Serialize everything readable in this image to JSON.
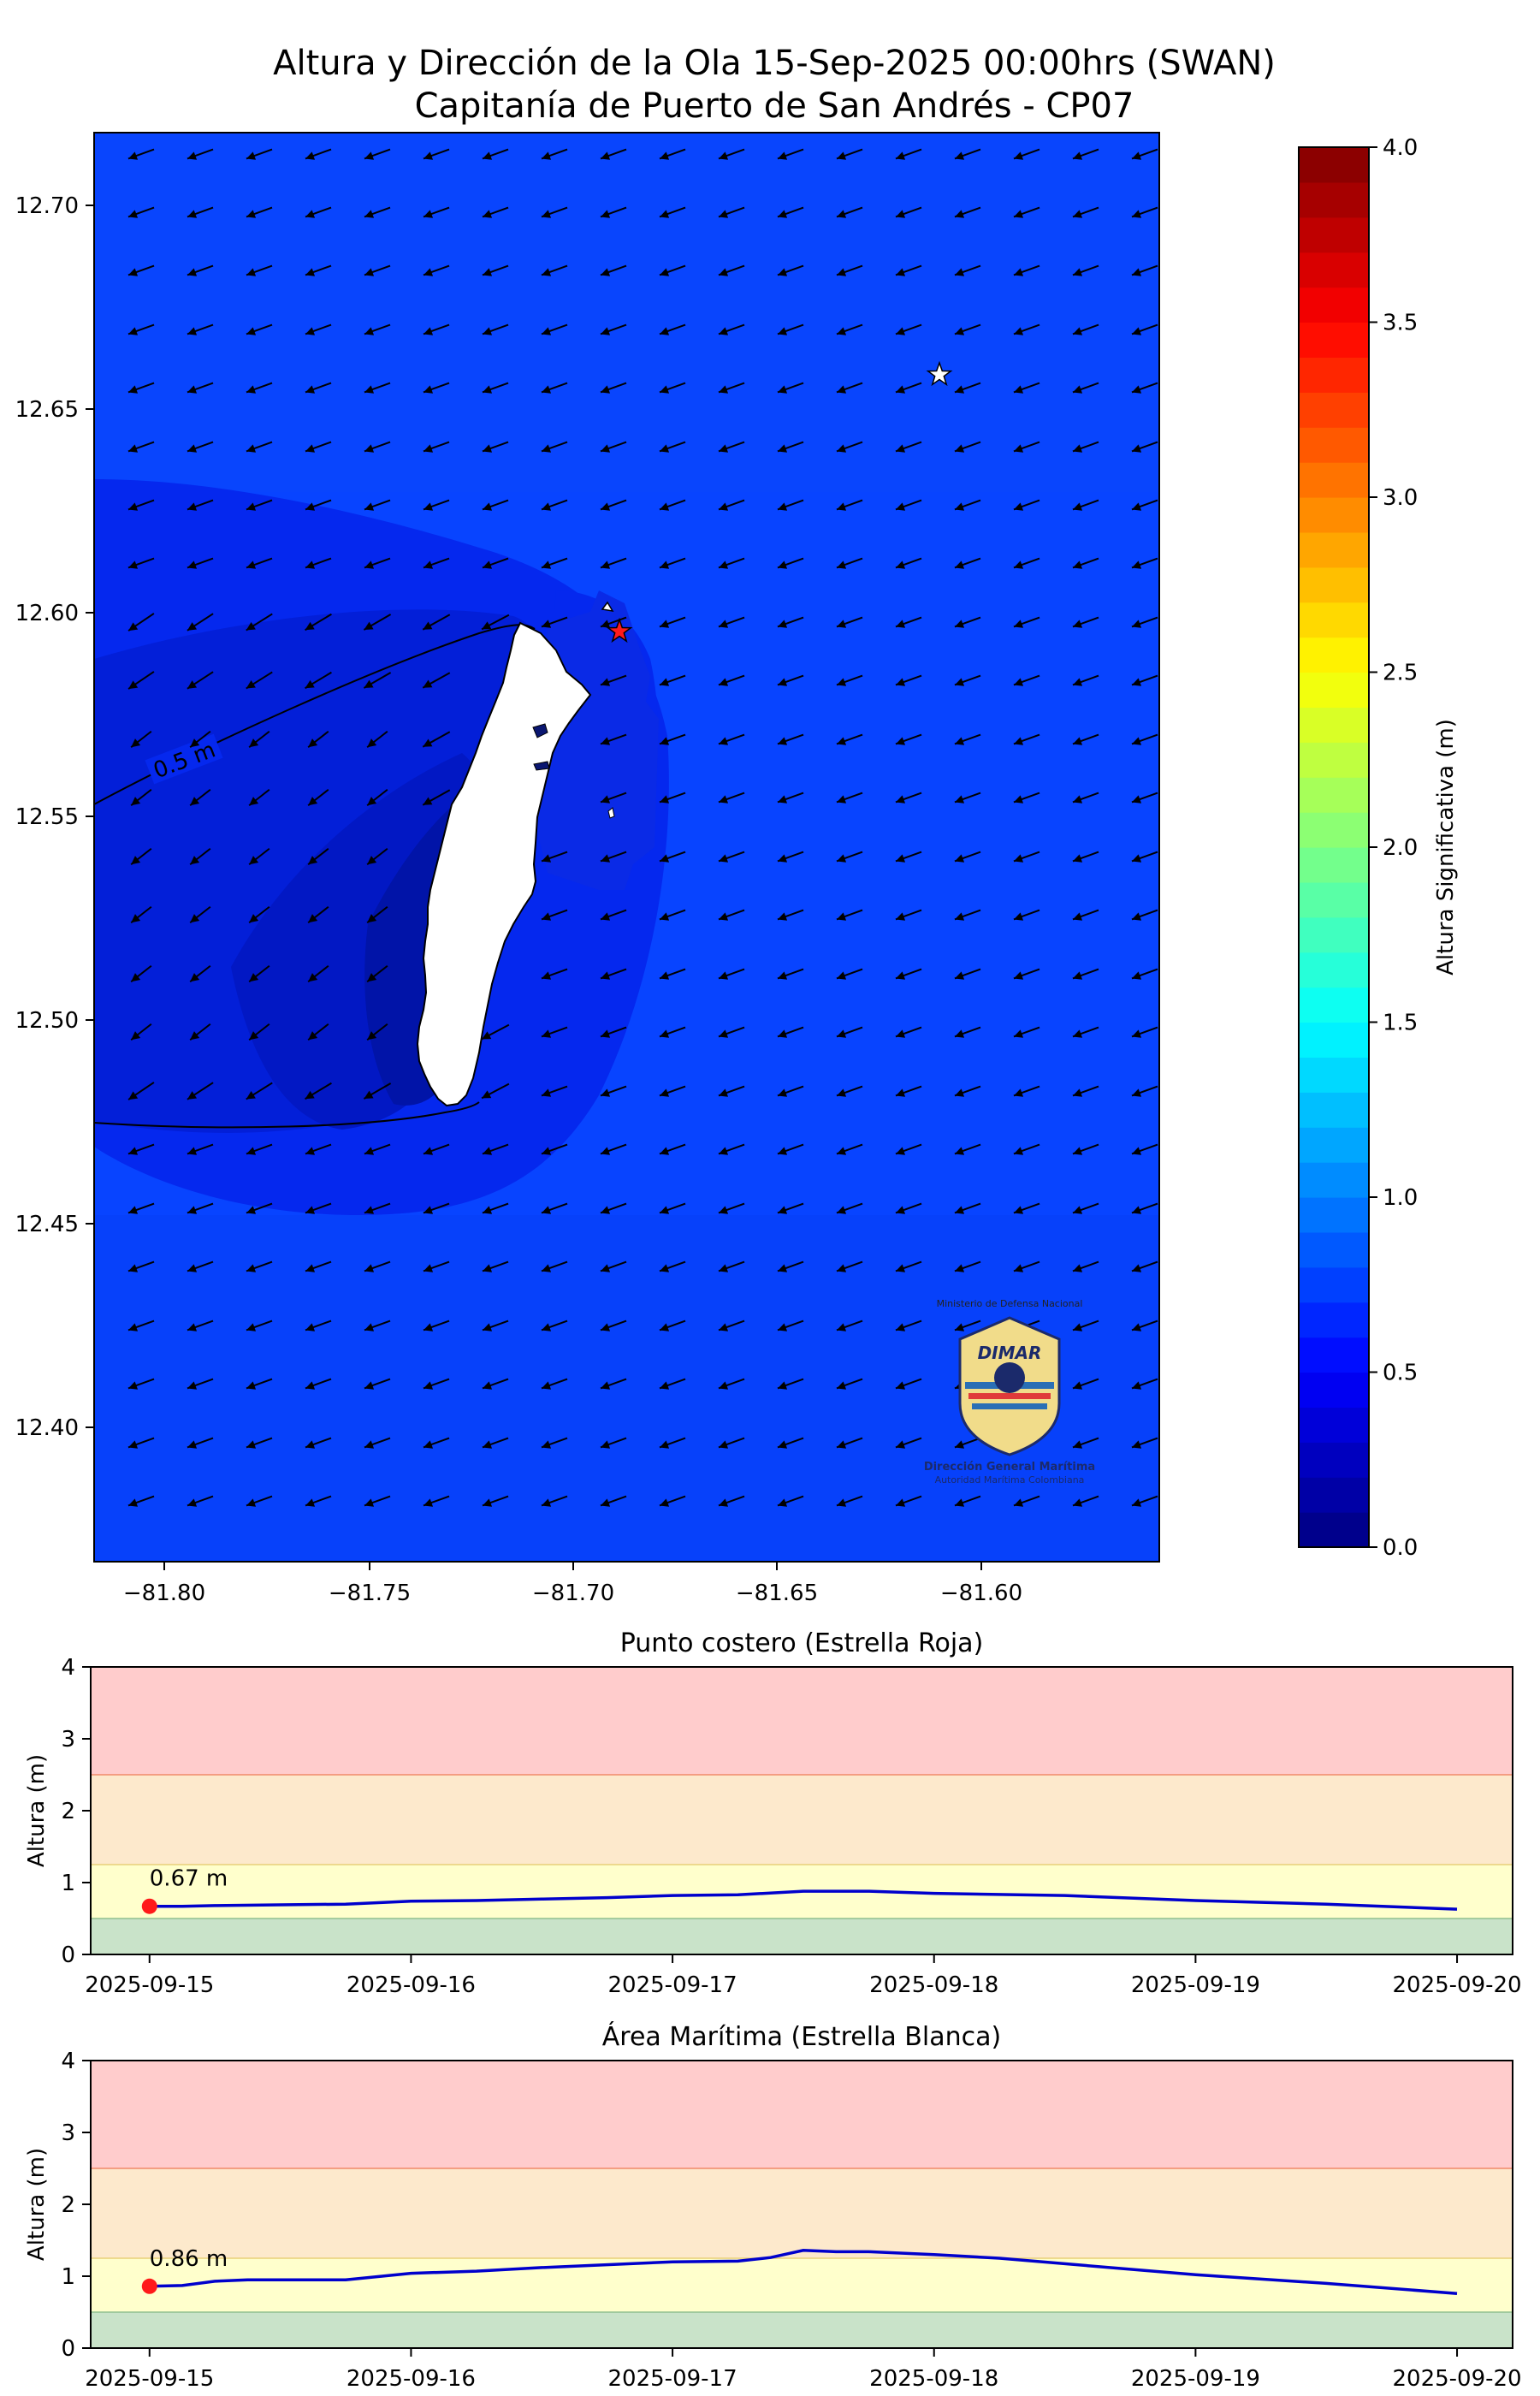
{
  "map": {
    "title_line1": "Altura y Dirección de la Ola 15-Sep-2025 00:00hrs (SWAN)",
    "title_line2": "Capitanía de Puerto de San Andrés - CP07",
    "contour_label": "0.5 m",
    "x_ticks": [
      "−81.80",
      "−81.75",
      "−81.70",
      "−81.65",
      "−81.60"
    ],
    "y_ticks": [
      "12.70",
      "12.65",
      "12.60",
      "12.55",
      "12.50",
      "12.45",
      "12.40"
    ],
    "colorbar": {
      "label": "Altura Significativa (m)",
      "ticks": [
        "0.0",
        "0.5",
        "1.0",
        "1.5",
        "2.0",
        "2.5",
        "3.0",
        "3.5",
        "4.0"
      ],
      "min": 0,
      "max": 4
    },
    "logo": {
      "top_text": "Ministerio de Defensa Nacional",
      "brand": "DIMAR",
      "line1": "Dirección General Marítima",
      "line2": "Autoridad Marítima Colombiana"
    }
  },
  "chart_data": [
    {
      "type": "line",
      "title": "Punto costero (Estrella Roja)",
      "ylabel": "Altura (m)",
      "ylim": [
        0,
        4
      ],
      "y_ticks": [
        "0",
        "1",
        "2",
        "3",
        "4"
      ],
      "x_ticks": [
        "2025-09-15",
        "2025-09-16",
        "2025-09-17",
        "2025-09-18",
        "2025-09-19",
        "2025-09-20"
      ],
      "x": [
        "2025-09-15 00:00",
        "2025-09-15 03:00",
        "2025-09-15 06:00",
        "2025-09-15 12:00",
        "2025-09-15 18:00",
        "2025-09-16 00:00",
        "2025-09-16 06:00",
        "2025-09-16 12:00",
        "2025-09-16 18:00",
        "2025-09-17 00:00",
        "2025-09-17 06:00",
        "2025-09-17 12:00",
        "2025-09-17 18:00",
        "2025-09-18 00:00",
        "2025-09-18 12:00",
        "2025-09-19 00:00",
        "2025-09-19 12:00",
        "2025-09-20 00:00"
      ],
      "values": [
        0.67,
        0.67,
        0.68,
        0.69,
        0.7,
        0.74,
        0.75,
        0.77,
        0.79,
        0.82,
        0.83,
        0.88,
        0.88,
        0.85,
        0.82,
        0.75,
        0.7,
        0.63
      ],
      "current_label": "0.67 m",
      "bands": [
        {
          "from": 0,
          "to": 0.5,
          "color": "#c9e3c9"
        },
        {
          "from": 0.5,
          "to": 1.25,
          "color": "#ffffcc"
        },
        {
          "from": 1.25,
          "to": 2.5,
          "color": "#fde9cc"
        },
        {
          "from": 2.5,
          "to": 4,
          "color": "#ffcccc"
        }
      ],
      "line_color": "#0000cc",
      "marker_color": "#ff1a1a"
    },
    {
      "type": "line",
      "title": "Área Marítima (Estrella Blanca)",
      "ylabel": "Altura (m)",
      "ylim": [
        0,
        4
      ],
      "y_ticks": [
        "0",
        "1",
        "2",
        "3",
        "4"
      ],
      "x_ticks": [
        "2025-09-15",
        "2025-09-16",
        "2025-09-17",
        "2025-09-18",
        "2025-09-19",
        "2025-09-20"
      ],
      "x": [
        "2025-09-15 00:00",
        "2025-09-15 03:00",
        "2025-09-15 06:00",
        "2025-09-15 09:00",
        "2025-09-15 12:00",
        "2025-09-15 18:00",
        "2025-09-16 00:00",
        "2025-09-16 06:00",
        "2025-09-16 12:00",
        "2025-09-17 00:00",
        "2025-09-17 06:00",
        "2025-09-17 09:00",
        "2025-09-17 12:00",
        "2025-09-17 15:00",
        "2025-09-17 18:00",
        "2025-09-18 00:00",
        "2025-09-18 06:00",
        "2025-09-19 00:00",
        "2025-09-19 12:00",
        "2025-09-20 00:00"
      ],
      "values": [
        0.86,
        0.87,
        0.93,
        0.95,
        0.95,
        0.95,
        1.04,
        1.07,
        1.12,
        1.2,
        1.21,
        1.26,
        1.36,
        1.34,
        1.34,
        1.3,
        1.25,
        1.02,
        0.9,
        0.76
      ],
      "current_label": "0.86 m",
      "bands": [
        {
          "from": 0,
          "to": 0.5,
          "color": "#c9e3c9"
        },
        {
          "from": 0.5,
          "to": 1.25,
          "color": "#ffffcc"
        },
        {
          "from": 1.25,
          "to": 2.5,
          "color": "#fde9cc"
        },
        {
          "from": 2.5,
          "to": 4,
          "color": "#ffcccc"
        }
      ],
      "line_color": "#0000cc",
      "marker_color": "#ff1a1a"
    }
  ]
}
